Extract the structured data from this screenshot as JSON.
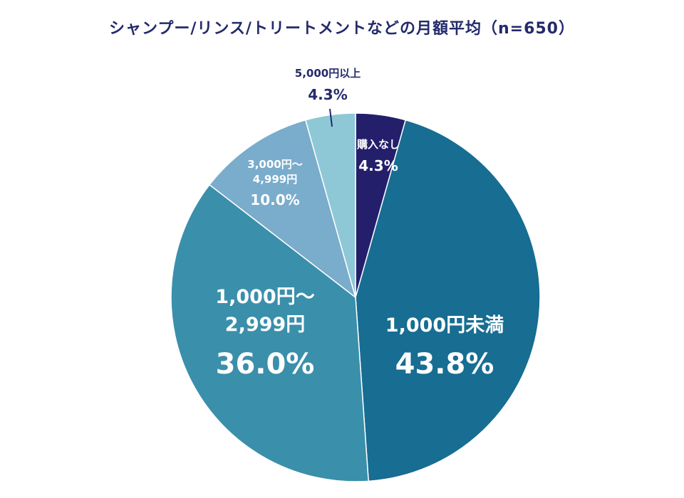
{
  "title": "シャンプー/リンス/トリートメントなどの月額平均（n=650）",
  "chart_data": {
    "type": "pie",
    "title": "シャンプー/リンス/トリートメントなどの月額平均（n=650）",
    "start": "12 o'clock",
    "direction": "clockwise",
    "slices": [
      {
        "label": [
          "購入なし"
        ],
        "value": 4.3,
        "value_label": "4.3%",
        "color": "#241f6b",
        "text_color": "#ffffff"
      },
      {
        "label": [
          "1,000円未満"
        ],
        "value": 43.8,
        "value_label": "43.8%",
        "color": "#176d92",
        "text_color": "#ffffff"
      },
      {
        "label": [
          "1,000円～",
          "2,999円"
        ],
        "value": 36.0,
        "value_label": "36.0%",
        "color": "#3a8fab",
        "text_color": "#ffffff"
      },
      {
        "label": [
          "3,000円～",
          "4,999円"
        ],
        "value": 10.0,
        "value_label": "10.0%",
        "color": "#7aaccc",
        "text_color": "#ffffff"
      },
      {
        "label": [
          "5,000円以上"
        ],
        "value": 4.3,
        "value_label": "4.3%",
        "color": "#8ec8d6",
        "text_color": "#232a6b",
        "label_outside": true
      }
    ]
  }
}
